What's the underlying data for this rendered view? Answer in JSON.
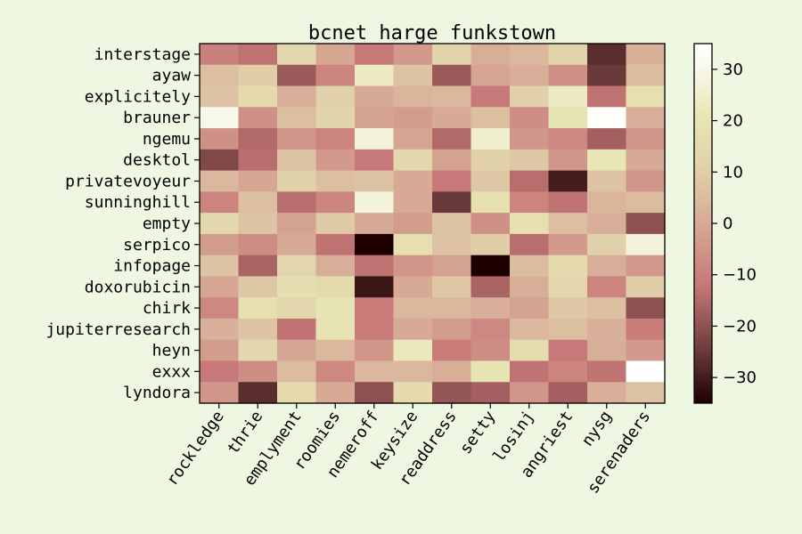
{
  "chart_data": {
    "type": "heatmap",
    "title": "bcnet harge funkstown",
    "xlabel": "",
    "ylabel": "",
    "x_categories": [
      "rockledge",
      "thrie",
      "emplyment",
      "roomies",
      "nemeroff",
      "keysize",
      "readdress",
      "setty",
      "losinj",
      "angriest",
      "nysg",
      "serenaders"
    ],
    "y_categories": [
      "interstage",
      "ayaw",
      "explicitely",
      "brauner",
      "ngemu",
      "desktol",
      "privatevoyeur",
      "sunninghill",
      "empty",
      "serpico",
      "infopage",
      "doxorubicin",
      "chirk",
      "jupiterresearch",
      "heyn",
      "exxx",
      "lyndora"
    ],
    "values": [
      [
        -10,
        -13,
        14,
        -1,
        -12,
        -4,
        12,
        1,
        4,
        12,
        -27,
        2
      ],
      [
        6,
        10,
        -18,
        -9,
        23,
        7,
        -18,
        -1,
        1,
        -6,
        -25,
        5
      ],
      [
        7,
        15,
        1,
        11,
        0,
        3,
        4,
        -12,
        11,
        23,
        -13,
        18
      ],
      [
        30,
        -6,
        6,
        12,
        -2,
        -3,
        0,
        6,
        -7,
        20,
        34,
        1
      ],
      [
        -6,
        -15,
        -5,
        -9,
        27,
        -1,
        -15,
        25,
        -5,
        -8,
        -17,
        -5
      ],
      [
        -22,
        -14,
        7,
        -4,
        -12,
        14,
        -2,
        11,
        8,
        -5,
        21,
        0
      ],
      [
        4,
        -1,
        11,
        6,
        7,
        0,
        -12,
        8,
        -14,
        -30,
        7,
        -5
      ],
      [
        -9,
        6,
        -14,
        -9,
        27,
        0,
        -25,
        18,
        -9,
        -13,
        3,
        5
      ],
      [
        14,
        7,
        -2,
        9,
        0,
        -3,
        7,
        -6,
        18,
        6,
        1,
        -20
      ],
      [
        -3,
        -7,
        0,
        -13,
        -35,
        18,
        7,
        10,
        -14,
        -4,
        11,
        27
      ],
      [
        7,
        -16,
        13,
        1,
        -13,
        -5,
        -2,
        -35,
        5,
        15,
        1,
        -4
      ],
      [
        -1,
        8,
        17,
        15,
        -31,
        0,
        8,
        -16,
        1,
        13,
        -9,
        10
      ],
      [
        -8,
        18,
        13,
        20,
        -11,
        4,
        4,
        1,
        -2,
        8,
        6,
        -20
      ],
      [
        2,
        7,
        -13,
        19,
        -11,
        0,
        -3,
        -8,
        4,
        6,
        2,
        -11
      ],
      [
        -3,
        14,
        -1,
        4,
        -5,
        22,
        -11,
        -7,
        16,
        -12,
        1,
        -4
      ],
      [
        -12,
        -7,
        5,
        -8,
        4,
        4,
        1,
        20,
        -13,
        -9,
        -13,
        35
      ],
      [
        -5,
        -27,
        15,
        0,
        -20,
        15,
        -19,
        -17,
        -5,
        -17,
        1,
        7
      ]
    ],
    "colorbar": {
      "min": -35,
      "max": 35,
      "ticks": [
        30,
        20,
        10,
        0,
        -10,
        -20,
        -30
      ],
      "tick_labels": [
        "30",
        "20",
        "10",
        "0",
        "−10",
        "−20",
        "−30"
      ]
    },
    "colormap": "pink",
    "grid": false
  }
}
